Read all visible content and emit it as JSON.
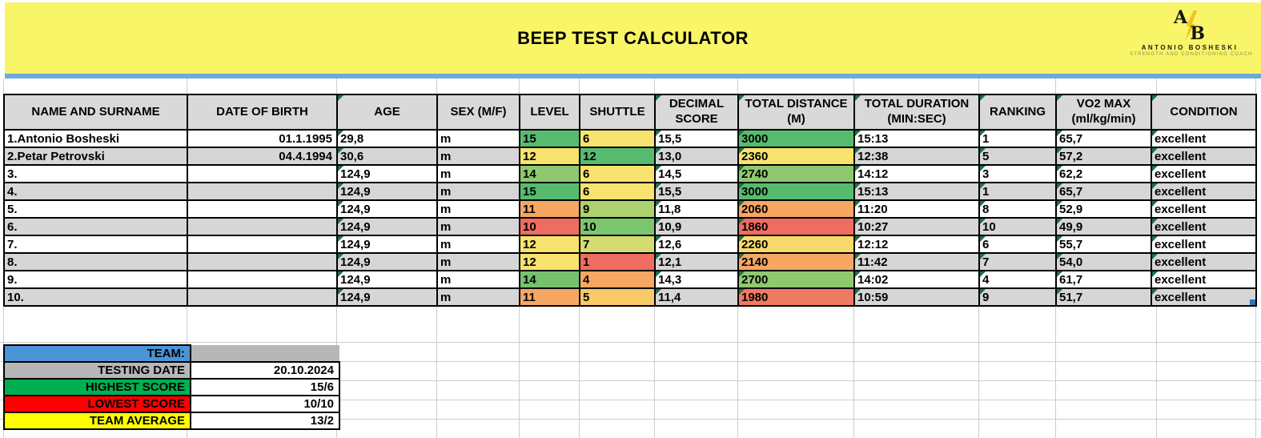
{
  "colors": {
    "banner-yellow": "#F9F568",
    "divider-blue": "#6FA8DC",
    "header-gray": "#D9D9D9",
    "row-alt-gray": "#D6D6D6",
    "grid-line": "#CDCDCD",
    "error-triangle-green": "#1E7145",
    "fill-handle-blue": "#2E75B6",
    "bolt-gold": "#F2C21E"
  },
  "banner": {
    "title": "BEEP TEST CALCULATOR",
    "logo": {
      "initial_a": "A",
      "initial_b": "B",
      "bolt_icon": "lightning-bolt",
      "name": "ANTONIO BOSHESKI",
      "tagline": "STRENGTH AND CONDITIONING COACH"
    }
  },
  "table": {
    "columns": [
      {
        "label": "NAME AND SURNAME",
        "key": "name",
        "error_flag": false
      },
      {
        "label": "DATE OF BIRTH",
        "key": "dob",
        "error_flag": false
      },
      {
        "label": "AGE",
        "key": "age",
        "error_flag": true
      },
      {
        "label": "SEX (M/F)",
        "key": "sex",
        "error_flag": false
      },
      {
        "label": "LEVEL",
        "key": "level",
        "error_flag": false
      },
      {
        "label": "SHUTTLE",
        "key": "shuttle",
        "error_flag": false
      },
      {
        "label": "DECIMAL SCORE",
        "key": "decimal",
        "error_flag": true
      },
      {
        "label": "TOTAL DISTANCE (M)",
        "key": "distance",
        "error_flag": true
      },
      {
        "label": "TOTAL DURATION (MIN:SEC)",
        "key": "duration",
        "error_flag": true
      },
      {
        "label": "RANKING",
        "key": "ranking",
        "error_flag": true
      },
      {
        "label": "VO2 MAX (ml/kg/min)",
        "key": "vo2max",
        "error_flag": true
      },
      {
        "label": "CONDITION",
        "key": "condition",
        "error_flag": true
      }
    ],
    "rows": [
      {
        "name": "1.Antonio Bosheski",
        "dob": "01.1.1995",
        "age": "29,8",
        "sex": "m",
        "level": "15",
        "level_color": "#57BB6F",
        "shuttle": "6",
        "shuttle_color": "#F7E36E",
        "decimal": "15,5",
        "distance": "3000",
        "distance_color": "#57BB6F",
        "duration": "15:13",
        "ranking": "1",
        "vo2max": "65,7",
        "condition": "excellent"
      },
      {
        "name": "2.Petar Petrovski",
        "dob": "04.4.1994",
        "age": "30,6",
        "sex": "m",
        "level": "12",
        "level_color": "#F7E36E",
        "shuttle": "12",
        "shuttle_color": "#57BB6F",
        "decimal": "13,0",
        "distance": "2360",
        "distance_color": "#F7E36E",
        "duration": "12:38",
        "ranking": "5",
        "vo2max": "57,2",
        "condition": "excellent"
      },
      {
        "name": "3.",
        "dob": "",
        "age": "124,9",
        "sex": "m",
        "level": "14",
        "level_color": "#8FC96F",
        "shuttle": "6",
        "shuttle_color": "#F7E36E",
        "decimal": "14,5",
        "distance": "2740",
        "distance_color": "#8FC96F",
        "duration": "14:12",
        "ranking": "3",
        "vo2max": "62,2",
        "condition": "excellent"
      },
      {
        "name": "4.",
        "dob": "",
        "age": "124,9",
        "sex": "m",
        "level": "15",
        "level_color": "#57BB6F",
        "shuttle": "6",
        "shuttle_color": "#F7E36E",
        "decimal": "15,5",
        "distance": "3000",
        "distance_color": "#57BB6F",
        "duration": "15:13",
        "ranking": "1",
        "vo2max": "65,7",
        "condition": "excellent"
      },
      {
        "name": "5.",
        "dob": "",
        "age": "124,9",
        "sex": "m",
        "level": "11",
        "level_color": "#F5A763",
        "shuttle": "9",
        "shuttle_color": "#ABD26F",
        "decimal": "11,8",
        "distance": "2060",
        "distance_color": "#F5A763",
        "duration": "11:20",
        "ranking": "8",
        "vo2max": "52,9",
        "condition": "excellent"
      },
      {
        "name": "6.",
        "dob": "",
        "age": "124,9",
        "sex": "m",
        "level": "10",
        "level_color": "#EE6D60",
        "shuttle": "10",
        "shuttle_color": "#7CC56F",
        "decimal": "10,9",
        "distance": "1860",
        "distance_color": "#EE6D60",
        "duration": "10:27",
        "ranking": "10",
        "vo2max": "49,9",
        "condition": "excellent"
      },
      {
        "name": "7.",
        "dob": "",
        "age": "124,9",
        "sex": "m",
        "level": "12",
        "level_color": "#F7E36E",
        "shuttle": "7",
        "shuttle_color": "#D4DC70",
        "decimal": "12,6",
        "distance": "2260",
        "distance_color": "#F8DA6C",
        "duration": "12:12",
        "ranking": "6",
        "vo2max": "55,7",
        "condition": "excellent"
      },
      {
        "name": "8.",
        "dob": "",
        "age": "124,9",
        "sex": "m",
        "level": "12",
        "level_color": "#F7E36E",
        "shuttle": "1",
        "shuttle_color": "#EE6D60",
        "decimal": "12,1",
        "distance": "2140",
        "distance_color": "#F5A763",
        "duration": "11:42",
        "ranking": "7",
        "vo2max": "54,0",
        "condition": "excellent"
      },
      {
        "name": "9.",
        "dob": "",
        "age": "124,9",
        "sex": "m",
        "level": "14",
        "level_color": "#77C16E",
        "shuttle": "4",
        "shuttle_color": "#F5A763",
        "decimal": "14,3",
        "distance": "2700",
        "distance_color": "#8FC96F",
        "duration": "14:02",
        "ranking": "4",
        "vo2max": "61,7",
        "condition": "excellent"
      },
      {
        "name": "10.",
        "dob": "",
        "age": "124,9",
        "sex": "m",
        "level": "11",
        "level_color": "#F5A763",
        "shuttle": "5",
        "shuttle_color": "#F8CA68",
        "decimal": "11,4",
        "distance": "1980",
        "distance_color": "#EF7A62",
        "duration": "10:59",
        "ranking": "9",
        "vo2max": "51,7",
        "condition": "excellent"
      }
    ]
  },
  "summary": {
    "rows": [
      {
        "label": "TEAM:",
        "value": "",
        "label_bg": "#4A94D8",
        "value_bg": "#B7B7B7",
        "value_border": false
      },
      {
        "label": "TESTING DATE",
        "value": "20.10.2024",
        "label_bg": "#B7B7B7",
        "value_bg": "#FFFFFF",
        "value_border": true
      },
      {
        "label": "HIGHEST SCORE",
        "value": "15/6",
        "label_bg": "#00B050",
        "value_bg": "#FFFFFF",
        "value_border": true
      },
      {
        "label": "LOWEST SCORE",
        "value": "10/10",
        "label_bg": "#FF0000",
        "value_bg": "#FFFFFF",
        "value_border": true
      },
      {
        "label": "TEAM AVERAGE",
        "value": "13/2",
        "label_bg": "#FFFF00",
        "value_bg": "#FFFFFF",
        "value_border": true
      }
    ]
  }
}
